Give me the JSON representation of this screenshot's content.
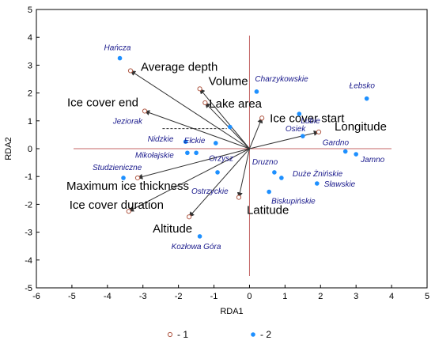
{
  "chart_data": {
    "type": "scatter",
    "xlabel": "RDA1",
    "ylabel": "RDA2",
    "xlim": [
      -6,
      5
    ],
    "ylim": [
      -5,
      5
    ],
    "x_ticks": [
      "-6",
      "-5",
      "-4",
      "-3",
      "-2",
      "-1",
      "0",
      "1",
      "2",
      "3",
      "4",
      "5"
    ],
    "y_ticks": [
      "5",
      "4",
      "3",
      "2",
      "1",
      "0",
      "-1",
      "-2",
      "-3",
      "-4",
      "-5"
    ],
    "colors": {
      "vector": "#333333",
      "site": "#1e90ff",
      "variable_point": "#b05a46",
      "zero_line": "#c46464",
      "lake_label": "#1a1a8c"
    },
    "variables": [
      {
        "name": "Average depth",
        "x": -3.35,
        "y": 2.8
      },
      {
        "name": "Ice cover end",
        "x": -2.95,
        "y": 1.35
      },
      {
        "name": "Volume",
        "x": -1.4,
        "y": 2.15
      },
      {
        "name": "Lake area",
        "x": -1.25,
        "y": 1.65
      },
      {
        "name": "Ice cover start",
        "x": 0.35,
        "y": 1.1
      },
      {
        "name": "Longitude",
        "x": 1.95,
        "y": 0.6
      },
      {
        "name": "Maximum ice thickness",
        "x": -3.15,
        "y": -1.05
      },
      {
        "name": "Ice cover duration",
        "x": -3.4,
        "y": -2.25
      },
      {
        "name": "Altitude",
        "x": -1.7,
        "y": -2.45
      },
      {
        "name": "Latitude",
        "x": -0.3,
        "y": -1.75
      }
    ],
    "sites": [
      {
        "name": "Hańcza",
        "x": -3.65,
        "y": 3.25
      },
      {
        "name": "Charzykowskie",
        "x": 0.2,
        "y": 2.05
      },
      {
        "name": "Łebsko",
        "x": 3.3,
        "y": 1.8
      },
      {
        "name": "Lubie",
        "x": 1.4,
        "y": 1.25
      },
      {
        "name": "Jeziorak",
        "x": -0.55,
        "y": 0.78
      },
      {
        "name": "Osiek",
        "x": 1.5,
        "y": 0.45
      },
      {
        "name": "Nidzkie",
        "x": -1.8,
        "y": 0.25
      },
      {
        "name": "Ełckie",
        "x": -0.95,
        "y": 0.2
      },
      {
        "name": "Mikołajskie",
        "x": -1.75,
        "y": -0.15
      },
      {
        "name": "Orzysz",
        "x": -1.5,
        "y": -0.15
      },
      {
        "name": "Gardno",
        "x": 2.7,
        "y": -0.1
      },
      {
        "name": "Jamno",
        "x": 3.0,
        "y": -0.2
      },
      {
        "name": "Studzieniczne",
        "x": -3.55,
        "y": -1.05
      },
      {
        "name": "Druzno",
        "x": 0.7,
        "y": -0.85
      },
      {
        "name": "Duże Żnińskie",
        "x": 0.9,
        "y": -1.05
      },
      {
        "name": "Sławskie",
        "x": 1.9,
        "y": -1.25
      },
      {
        "name": "Biskupińskie",
        "x": 0.55,
        "y": -1.55
      },
      {
        "name": "Ostrzyckie",
        "x": -0.9,
        "y": -0.85
      },
      {
        "name": "Kozłowa Góra",
        "x": -1.4,
        "y": -3.15
      }
    ],
    "legend": {
      "position": "bottom",
      "entries": [
        {
          "marker": "open-circle",
          "label": "- 1"
        },
        {
          "marker": "filled-circle",
          "label": "- 2"
        }
      ]
    }
  }
}
